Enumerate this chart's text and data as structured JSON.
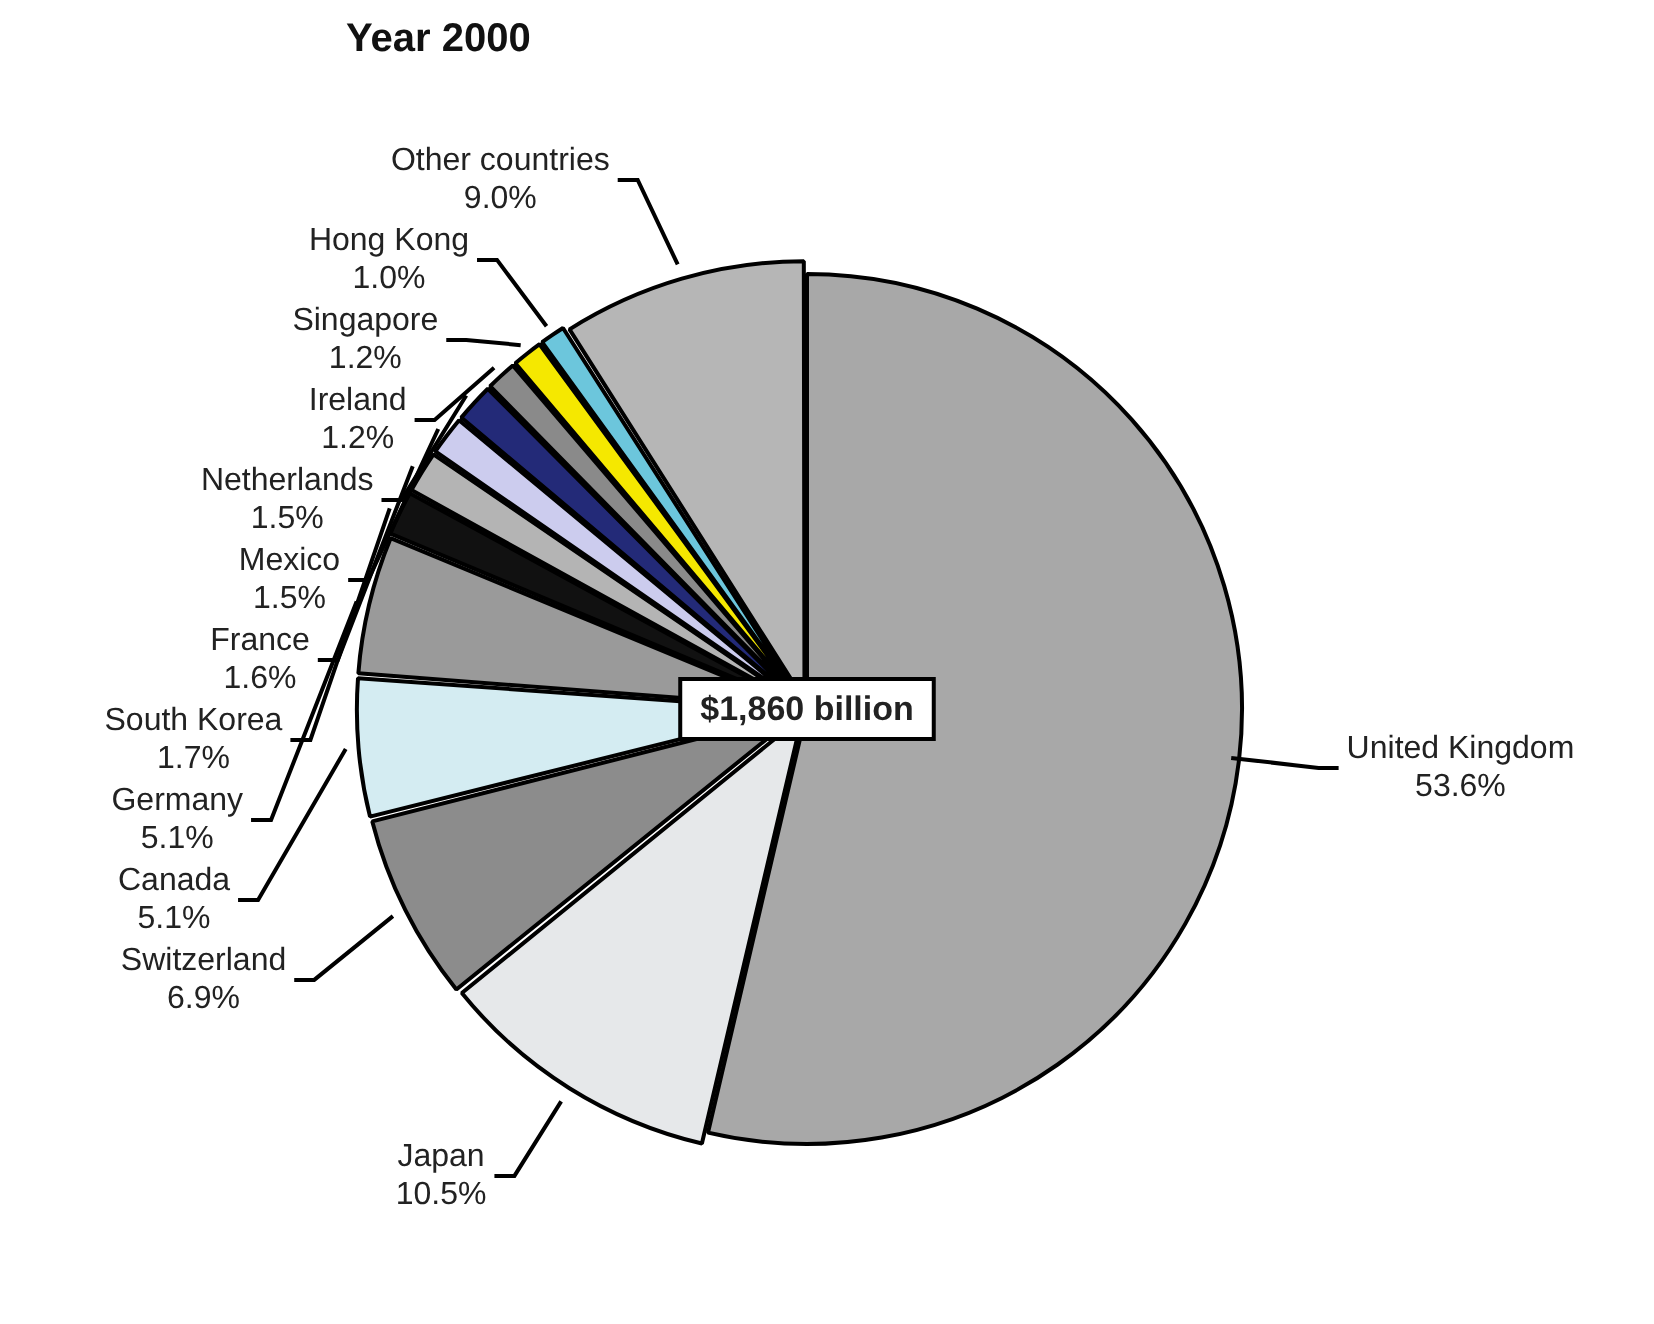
{
  "chart_data": {
    "type": "pie",
    "title": "Year 2000",
    "legend": false,
    "categories": [
      "United Kingdom",
      "Japan",
      "Switzerland",
      "Canada",
      "Germany",
      "South Korea",
      "France",
      "Mexico",
      "Netherlands",
      "Ireland",
      "Singapore",
      "Hong Kong",
      "Other countries"
    ],
    "values": [
      53.6,
      10.5,
      6.9,
      5.1,
      5.1,
      1.7,
      1.6,
      1.5,
      1.5,
      1.2,
      1.2,
      1.0,
      9.0
    ],
    "value_labels": [
      "53.6%",
      "10.5%",
      "6.9%",
      "5.1%",
      "5.1%",
      "1.7%",
      "1.6%",
      "1.5%",
      "1.5%",
      "1.2%",
      "1.2%",
      "1.0%",
      "9.0%"
    ],
    "colors": [
      "#a8a8a8",
      "#e6e8ea",
      "#8c8c8c",
      "#d4ecf2",
      "#9a9a9a",
      "#111111",
      "#b4b4b4",
      "#ccccee",
      "#232a78",
      "#8a8a8a",
      "#f5e800",
      "#6cc6dc",
      "#b6b6b6"
    ],
    "annotations": [
      "$1,860 billion"
    ]
  }
}
